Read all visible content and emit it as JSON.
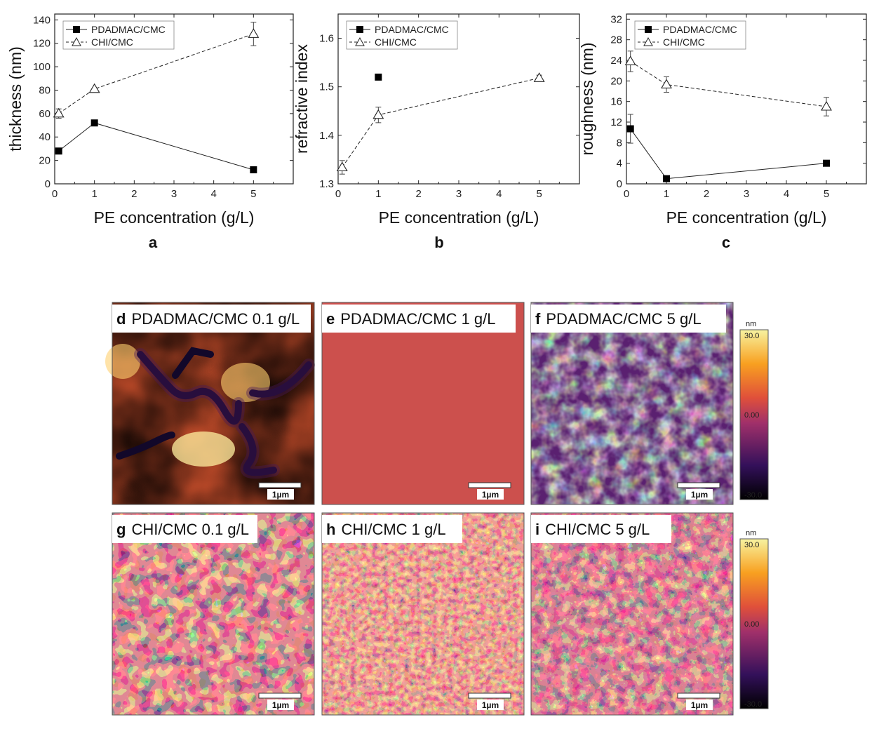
{
  "chart_data": [
    {
      "type": "line",
      "panel": "a",
      "xlabel": "PE concentration (g/L)",
      "ylabel": "thickness (nm)",
      "xlim": [
        0,
        6
      ],
      "ylim": [
        0,
        145
      ],
      "xticks": [
        "0",
        "1",
        "2",
        "3",
        "4",
        "5"
      ],
      "yticks": [
        "0",
        "20",
        "40",
        "60",
        "80",
        "100",
        "120",
        "140"
      ],
      "legend": "top-left",
      "series": [
        {
          "name": "PDADMAC/CMC",
          "marker": "square",
          "line": "solid",
          "x": [
            0.1,
            1,
            5
          ],
          "y": [
            28,
            52,
            12
          ],
          "err": [
            0,
            0,
            0
          ]
        },
        {
          "name": "CHI/CMC",
          "marker": "triangle",
          "line": "dashed",
          "x": [
            0.1,
            1,
            5
          ],
          "y": [
            60,
            81,
            128
          ],
          "err": [
            4,
            0,
            10
          ]
        }
      ]
    },
    {
      "type": "line",
      "panel": "b",
      "xlabel": "PE concentration (g/L)",
      "ylabel": "refractive index",
      "xlim": [
        0,
        6
      ],
      "ylim": [
        1.3,
        1.65
      ],
      "xticks": [
        "0",
        "1",
        "2",
        "3",
        "4",
        "5"
      ],
      "yticks": [
        "1.3",
        "1.4",
        "1.5",
        "1.6"
      ],
      "legend": "top-left",
      "series": [
        {
          "name": "PDADMAC/CMC",
          "marker": "square",
          "line": "none",
          "x": [
            1
          ],
          "y": [
            1.52
          ],
          "err": [
            0
          ]
        },
        {
          "name": "CHI/CMC",
          "marker": "triangle",
          "line": "dashed",
          "x": [
            0.1,
            1,
            5
          ],
          "y": [
            1.334,
            1.442,
            1.518
          ],
          "err": [
            0.014,
            0.016,
            0.006
          ]
        }
      ]
    },
    {
      "type": "line",
      "panel": "c",
      "xlabel": "PE concentration (g/L)",
      "ylabel": "roughness (nm)",
      "xlim": [
        0,
        6
      ],
      "ylim": [
        0,
        33
      ],
      "xticks": [
        "0",
        "1",
        "2",
        "3",
        "4",
        "5"
      ],
      "yticks": [
        "0",
        "4",
        "8",
        "12",
        "16",
        "20",
        "24",
        "28",
        "32"
      ],
      "legend": "top-left",
      "series": [
        {
          "name": "PDADMAC/CMC",
          "marker": "square",
          "line": "solid",
          "x": [
            0.1,
            1,
            5
          ],
          "y": [
            10.7,
            1,
            4
          ],
          "err": [
            2.8,
            0,
            0
          ]
        },
        {
          "name": "CHI/CMC",
          "marker": "triangle",
          "line": "dashed",
          "x": [
            0.1,
            1,
            5
          ],
          "y": [
            23.8,
            19.3,
            15
          ],
          "err": [
            2,
            1.5,
            1.8
          ]
        }
      ]
    }
  ],
  "afm": {
    "scale_bar": "1µm",
    "colorbar": {
      "unit": "nm",
      "max": "30.0",
      "mid": "0.00",
      "min": "-30.0"
    },
    "panels": [
      {
        "letter": "d",
        "label": "PDADMAC/CMC 0.1 g/L"
      },
      {
        "letter": "e",
        "label": "PDADMAC/CMC 1 g/L"
      },
      {
        "letter": "f",
        "label": "PDADMAC/CMC 5 g/L"
      },
      {
        "letter": "g",
        "label": "CHI/CMC 0.1 g/L"
      },
      {
        "letter": "h",
        "label": "CHI/CMC 1 g/L"
      },
      {
        "letter": "i",
        "label": "CHI/CMC 5 g/L"
      }
    ]
  },
  "colors": {
    "afm_dark": "#1a0a30",
    "afm_mid": "#c0404e",
    "afm_bright": "#fff3a0"
  }
}
